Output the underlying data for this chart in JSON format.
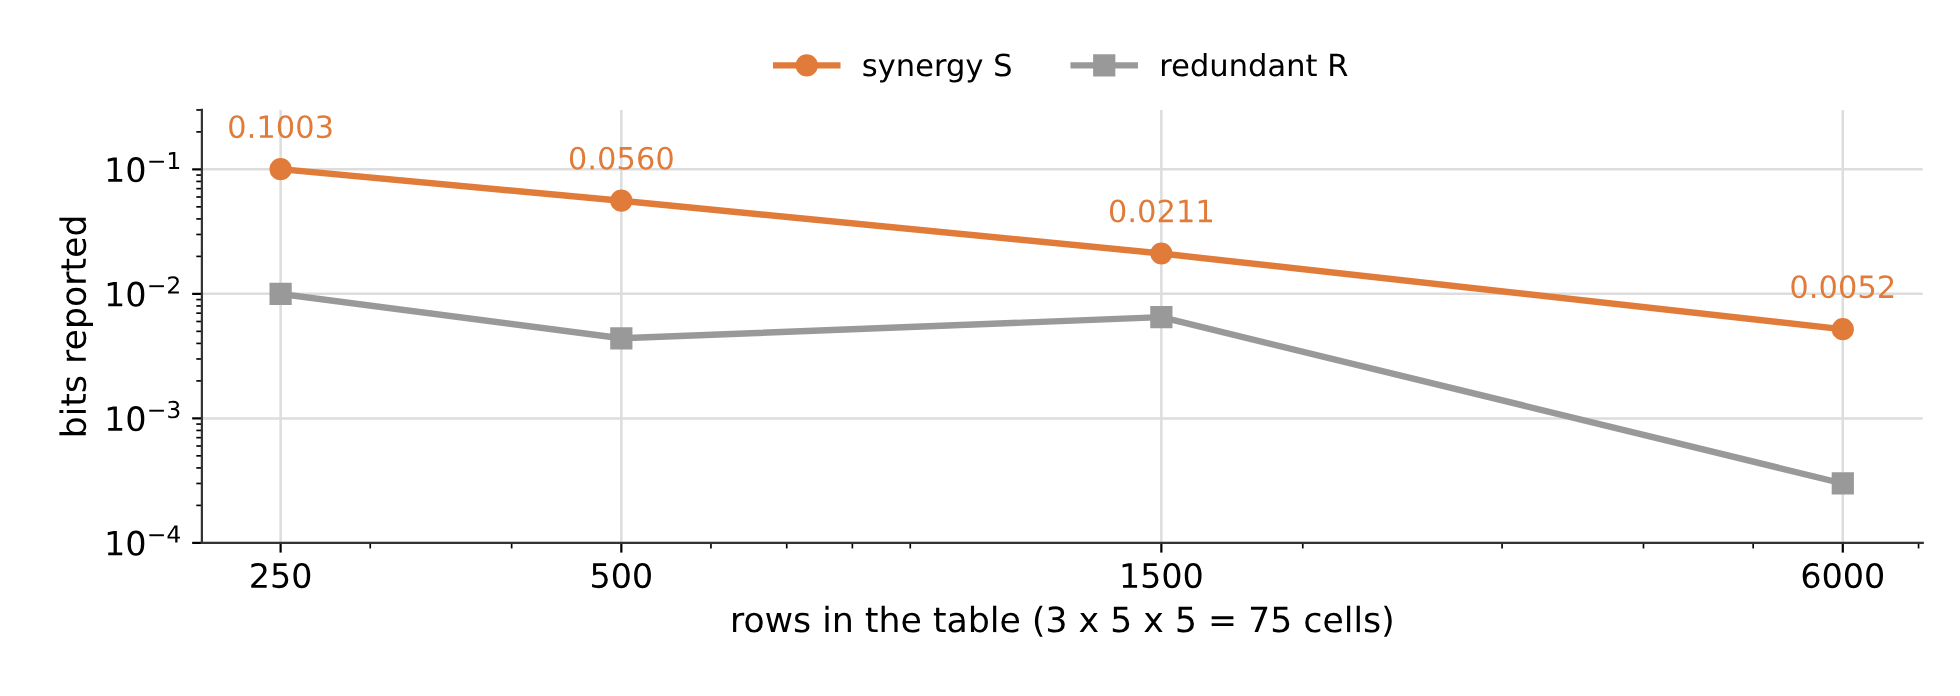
{
  "chart_data": {
    "type": "line",
    "xlabel": "rows in the table (3 x 5 x 5 = 75 cells)",
    "ylabel": "bits reported",
    "x": [
      250,
      500,
      1500,
      6000
    ],
    "series": [
      {
        "name": "synergy S",
        "color": "#e07b39",
        "values": [
          0.1003,
          0.056,
          0.0211,
          0.0052
        ],
        "marker": "circle",
        "value_labels": [
          "0.1003",
          "0.0560",
          "0.0211",
          "0.0052"
        ]
      },
      {
        "name": "redundant R",
        "color": "#999999",
        "values": [
          0.01,
          0.0044,
          0.0065,
          0.0003
        ],
        "marker": "square"
      }
    ],
    "log": "xy",
    "xlim": [
      213,
      7060
    ],
    "ylim": [
      0.0001,
      0.3
    ],
    "xticks": [
      250,
      500,
      1500,
      6000
    ],
    "yticks": [
      {
        "value": 0.0001,
        "label": "10$^{−4}$"
      },
      {
        "value": 0.001,
        "label": "10$^{−3}$"
      },
      {
        "value": 0.01,
        "label": "10$^{−2}$"
      },
      {
        "value": 0.1,
        "label": "10$^{−1}$"
      }
    ],
    "grid": true,
    "legend": "top"
  }
}
